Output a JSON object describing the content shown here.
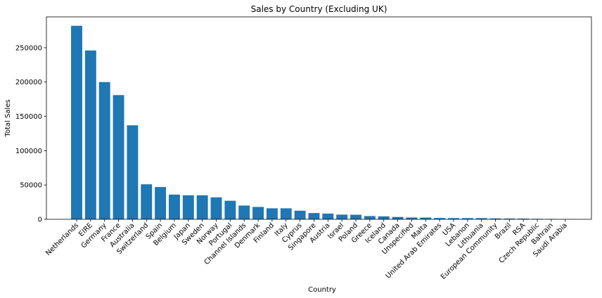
{
  "chart_data": {
    "type": "bar",
    "title": "Sales by Country (Excluding UK)",
    "xlabel": "Country",
    "ylabel": "Total Sales",
    "ylim": [
      0,
      295000
    ],
    "yticks": [
      0,
      50000,
      100000,
      150000,
      200000,
      250000
    ],
    "grid": false,
    "bar_color": "#1f77b4",
    "categories": [
      "Netherlands",
      "EIRE",
      "Germany",
      "France",
      "Australia",
      "Switzerland",
      "Spain",
      "Belgium",
      "Japan",
      "Sweden",
      "Norway",
      "Portugal",
      "Channel Islands",
      "Denmark",
      "Finland",
      "Italy",
      "Cyprus",
      "Singapore",
      "Austria",
      "Israel",
      "Poland",
      "Greece",
      "Iceland",
      "Canada",
      "Unspecified",
      "Malta",
      "United Arab Emirates",
      "USA",
      "Lebanon",
      "Lithuania",
      "European Community",
      "Brazil",
      "RSA",
      "Czech Republic",
      "Bahrain",
      "Saudi Arabia"
    ],
    "values": [
      282000,
      246000,
      200000,
      181000,
      137000,
      51000,
      47000,
      36000,
      35000,
      35000,
      32000,
      27000,
      20000,
      18000,
      16000,
      16000,
      12500,
      9100,
      8300,
      6800,
      6600,
      4700,
      4300,
      3400,
      2600,
      2500,
      1900,
      1700,
      1700,
      1700,
      1300,
      1100,
      1000,
      700,
      550,
      130
    ]
  }
}
